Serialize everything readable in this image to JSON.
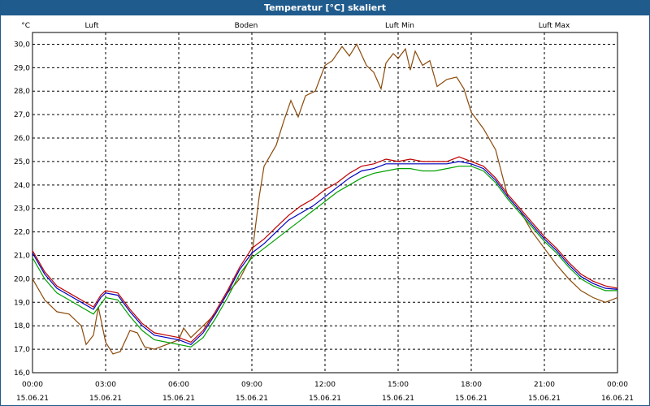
{
  "window": {
    "title": "Temperatur [°C] skaliert"
  },
  "chart_data": {
    "type": "line",
    "title": "Temperatur [°C] skaliert",
    "ylabel": "°C",
    "ylim": [
      16.0,
      30.5
    ],
    "yticks": [
      16.0,
      17.0,
      18.0,
      19.0,
      20.0,
      21.0,
      22.0,
      23.0,
      24.0,
      25.0,
      26.0,
      27.0,
      28.0,
      29.0,
      30.0
    ],
    "ytick_labels": [
      "16,0",
      "17,0",
      "18,0",
      "19,0",
      "20,0",
      "21,0",
      "22,0",
      "23,0",
      "24,0",
      "25,0",
      "26,0",
      "27,0",
      "28,0",
      "29,0",
      "30,0"
    ],
    "xlim_hours": [
      0,
      24
    ],
    "xticks": [
      {
        "h": 0,
        "time": "00:00",
        "date": "15.06.21"
      },
      {
        "h": 3,
        "time": "03:00",
        "date": "15.06.21"
      },
      {
        "h": 6,
        "time": "06:00",
        "date": "15.06.21"
      },
      {
        "h": 9,
        "time": "09:00",
        "date": "15.06.21"
      },
      {
        "h": 12,
        "time": "12:00",
        "date": "15.06.21"
      },
      {
        "h": 15,
        "time": "15:00",
        "date": "15.06.21"
      },
      {
        "h": 18,
        "time": "18:00",
        "date": "15.06.21"
      },
      {
        "h": 21,
        "time": "21:00",
        "date": "15.06.21"
      },
      {
        "h": 24,
        "time": "00:00",
        "date": "16.06.21"
      }
    ],
    "grid": true,
    "series": [
      {
        "name": "Luft",
        "color": "#0000c0",
        "points": [
          [
            0,
            21.1
          ],
          [
            0.5,
            20.2
          ],
          [
            1,
            19.6
          ],
          [
            1.5,
            19.3
          ],
          [
            2,
            19.0
          ],
          [
            2.5,
            18.7
          ],
          [
            2.8,
            19.2
          ],
          [
            3,
            19.4
          ],
          [
            3.5,
            19.3
          ],
          [
            4,
            18.6
          ],
          [
            4.5,
            18.0
          ],
          [
            5,
            17.6
          ],
          [
            5.5,
            17.5
          ],
          [
            6,
            17.4
          ],
          [
            6.5,
            17.2
          ],
          [
            7,
            17.7
          ],
          [
            7.5,
            18.5
          ],
          [
            8,
            19.4
          ],
          [
            8.5,
            20.4
          ],
          [
            9,
            21.1
          ],
          [
            9.5,
            21.5
          ],
          [
            10,
            22.0
          ],
          [
            10.5,
            22.5
          ],
          [
            11,
            22.8
          ],
          [
            11.5,
            23.1
          ],
          [
            12,
            23.5
          ],
          [
            12.5,
            23.9
          ],
          [
            13,
            24.3
          ],
          [
            13.5,
            24.6
          ],
          [
            14,
            24.7
          ],
          [
            14.5,
            24.9
          ],
          [
            15,
            24.9
          ],
          [
            15.5,
            24.9
          ],
          [
            16,
            24.9
          ],
          [
            16.5,
            24.9
          ],
          [
            17,
            24.9
          ],
          [
            17.5,
            25.0
          ],
          [
            18,
            24.9
          ],
          [
            18.5,
            24.7
          ],
          [
            19,
            24.2
          ],
          [
            19.5,
            23.5
          ],
          [
            20,
            22.9
          ],
          [
            20.5,
            22.3
          ],
          [
            21,
            21.7
          ],
          [
            21.5,
            21.2
          ],
          [
            22,
            20.6
          ],
          [
            22.5,
            20.1
          ],
          [
            23,
            19.8
          ],
          [
            23.5,
            19.6
          ],
          [
            24,
            19.55
          ]
        ]
      },
      {
        "name": "Boden",
        "color": "#8b4a0a",
        "points": [
          [
            0,
            20.0
          ],
          [
            0.5,
            19.1
          ],
          [
            1,
            18.6
          ],
          [
            1.5,
            18.5
          ],
          [
            2,
            18.0
          ],
          [
            2.2,
            17.2
          ],
          [
            2.5,
            17.6
          ],
          [
            2.7,
            18.8
          ],
          [
            3,
            17.3
          ],
          [
            3.3,
            16.8
          ],
          [
            3.6,
            16.9
          ],
          [
            4,
            17.8
          ],
          [
            4.3,
            17.7
          ],
          [
            4.6,
            17.1
          ],
          [
            5,
            17.0
          ],
          [
            5.5,
            17.2
          ],
          [
            6,
            17.4
          ],
          [
            6.2,
            17.9
          ],
          [
            6.5,
            17.5
          ],
          [
            7,
            18.0
          ],
          [
            7.5,
            18.5
          ],
          [
            8,
            19.4
          ],
          [
            8.5,
            20.0
          ],
          [
            9,
            21.0
          ],
          [
            9.3,
            23.5
          ],
          [
            9.5,
            24.8
          ],
          [
            10,
            25.7
          ],
          [
            10.3,
            26.7
          ],
          [
            10.6,
            27.6
          ],
          [
            10.9,
            26.9
          ],
          [
            11.2,
            27.8
          ],
          [
            11.6,
            28.0
          ],
          [
            12,
            29.1
          ],
          [
            12.3,
            29.3
          ],
          [
            12.7,
            29.9
          ],
          [
            13,
            29.5
          ],
          [
            13.3,
            30.0
          ],
          [
            13.7,
            29.1
          ],
          [
            14,
            28.8
          ],
          [
            14.3,
            28.1
          ],
          [
            14.5,
            29.2
          ],
          [
            14.8,
            29.6
          ],
          [
            15,
            29.4
          ],
          [
            15.3,
            29.8
          ],
          [
            15.5,
            28.9
          ],
          [
            15.7,
            29.7
          ],
          [
            16,
            29.1
          ],
          [
            16.3,
            29.3
          ],
          [
            16.6,
            28.2
          ],
          [
            17,
            28.5
          ],
          [
            17.4,
            28.6
          ],
          [
            17.7,
            28.1
          ],
          [
            18,
            27.1
          ],
          [
            18.5,
            26.4
          ],
          [
            19,
            25.5
          ],
          [
            19.5,
            23.5
          ],
          [
            20,
            22.9
          ],
          [
            20.5,
            22.0
          ],
          [
            21,
            21.3
          ],
          [
            21.5,
            20.6
          ],
          [
            22,
            20.0
          ],
          [
            22.5,
            19.5
          ],
          [
            23,
            19.2
          ],
          [
            23.5,
            19.0
          ],
          [
            24,
            19.2
          ]
        ]
      },
      {
        "name": "Luft Min",
        "color": "#00a000",
        "points": [
          [
            0,
            20.9
          ],
          [
            0.5,
            20.0
          ],
          [
            1,
            19.4
          ],
          [
            1.5,
            19.1
          ],
          [
            2,
            18.8
          ],
          [
            2.5,
            18.5
          ],
          [
            3,
            19.2
          ],
          [
            3.5,
            19.1
          ],
          [
            4,
            18.4
          ],
          [
            4.5,
            17.8
          ],
          [
            5,
            17.4
          ],
          [
            5.5,
            17.3
          ],
          [
            6,
            17.2
          ],
          [
            6.5,
            17.1
          ],
          [
            7,
            17.5
          ],
          [
            7.5,
            18.3
          ],
          [
            8,
            19.2
          ],
          [
            8.5,
            20.2
          ],
          [
            9,
            20.9
          ],
          [
            9.5,
            21.3
          ],
          [
            10,
            21.7
          ],
          [
            10.5,
            22.1
          ],
          [
            11,
            22.5
          ],
          [
            11.5,
            22.9
          ],
          [
            12,
            23.3
          ],
          [
            12.5,
            23.7
          ],
          [
            13,
            24.0
          ],
          [
            13.5,
            24.3
          ],
          [
            14,
            24.5
          ],
          [
            14.5,
            24.6
          ],
          [
            15,
            24.7
          ],
          [
            15.5,
            24.7
          ],
          [
            16,
            24.6
          ],
          [
            16.5,
            24.6
          ],
          [
            17,
            24.7
          ],
          [
            17.5,
            24.8
          ],
          [
            18,
            24.8
          ],
          [
            18.5,
            24.6
          ],
          [
            19,
            24.1
          ],
          [
            19.5,
            23.4
          ],
          [
            20,
            22.8
          ],
          [
            20.5,
            22.2
          ],
          [
            21,
            21.6
          ],
          [
            21.5,
            21.1
          ],
          [
            22,
            20.5
          ],
          [
            22.5,
            20.0
          ],
          [
            23,
            19.7
          ],
          [
            23.5,
            19.5
          ],
          [
            24,
            19.5
          ]
        ]
      },
      {
        "name": "Luft Max",
        "color": "#c00000",
        "points": [
          [
            0,
            21.2
          ],
          [
            0.5,
            20.3
          ],
          [
            1,
            19.7
          ],
          [
            1.5,
            19.4
          ],
          [
            2,
            19.1
          ],
          [
            2.5,
            18.8
          ],
          [
            2.8,
            19.3
          ],
          [
            3,
            19.5
          ],
          [
            3.5,
            19.4
          ],
          [
            4,
            18.7
          ],
          [
            4.5,
            18.1
          ],
          [
            5,
            17.7
          ],
          [
            5.5,
            17.6
          ],
          [
            6,
            17.5
          ],
          [
            6.5,
            17.3
          ],
          [
            7,
            17.8
          ],
          [
            7.5,
            18.6
          ],
          [
            8,
            19.5
          ],
          [
            8.5,
            20.5
          ],
          [
            9,
            21.3
          ],
          [
            9.5,
            21.7
          ],
          [
            10,
            22.2
          ],
          [
            10.5,
            22.7
          ],
          [
            11,
            23.1
          ],
          [
            11.5,
            23.4
          ],
          [
            12,
            23.8
          ],
          [
            12.5,
            24.1
          ],
          [
            13,
            24.5
          ],
          [
            13.5,
            24.8
          ],
          [
            14,
            24.9
          ],
          [
            14.5,
            25.1
          ],
          [
            15,
            25.0
          ],
          [
            15.5,
            25.1
          ],
          [
            16,
            25.0
          ],
          [
            16.5,
            25.0
          ],
          [
            17,
            25.0
          ],
          [
            17.5,
            25.2
          ],
          [
            18,
            25.0
          ],
          [
            18.5,
            24.8
          ],
          [
            19,
            24.3
          ],
          [
            19.5,
            23.6
          ],
          [
            20,
            23.0
          ],
          [
            20.5,
            22.4
          ],
          [
            21,
            21.8
          ],
          [
            21.5,
            21.3
          ],
          [
            22,
            20.7
          ],
          [
            22.5,
            20.2
          ],
          [
            23,
            19.9
          ],
          [
            23.5,
            19.7
          ],
          [
            24,
            19.6
          ]
        ]
      }
    ]
  }
}
